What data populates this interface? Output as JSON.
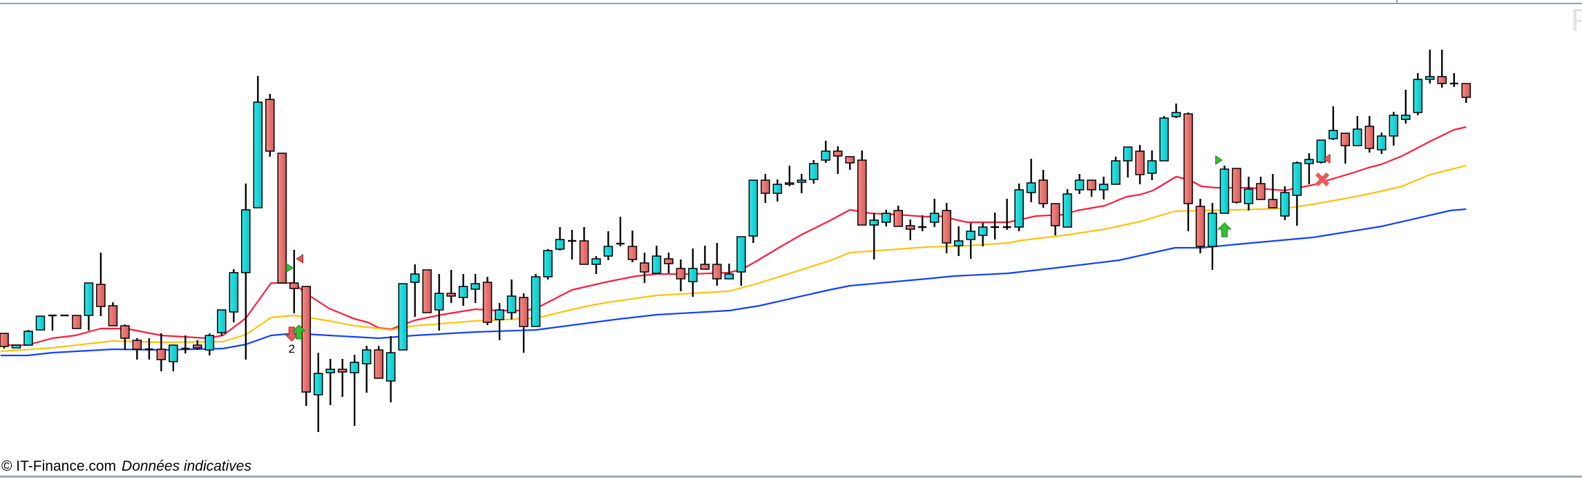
{
  "footer": {
    "copyright": "© IT-Finance.com",
    "disclaimer": "Données indicatives"
  },
  "watermark_fragment": "F",
  "colors": {
    "bull": "#12d6d6",
    "bear": "#e86e6e",
    "outline": "#000000",
    "ma_fast": "#ff1a3c",
    "ma_mid": "#ffc20e",
    "ma_slow": "#1040ff",
    "signal_buy": "#2eb82e",
    "signal_sell": "#e84c4c",
    "border": "#8fa0aa"
  },
  "chart_data": {
    "type": "candlestick",
    "title": "",
    "xlabel": "",
    "ylabel": "",
    "grid": false,
    "note": "No price or time axis shown; values in relative price units, x in bar index",
    "xlim": [
      1,
      122
    ],
    "ylim": [
      5,
      65
    ],
    "candles_ohlc": [
      [
        21.7,
        21.7,
        19.5,
        19.8
      ],
      [
        19.6,
        20.0,
        19.6,
        20.0
      ],
      [
        20.0,
        22.2,
        20.0,
        22.0
      ],
      [
        22.2,
        24.2,
        22.2,
        24.2
      ],
      [
        24.3,
        24.3,
        22.1,
        24.3
      ],
      [
        24.3,
        24.3,
        24.3,
        24.3
      ],
      [
        24.3,
        24.3,
        22.4,
        22.4
      ],
      [
        24.3,
        29.0,
        22.1,
        29.0
      ],
      [
        28.8,
        33.4,
        24.2,
        25.6
      ],
      [
        25.7,
        26.2,
        22.8,
        22.8
      ],
      [
        22.8,
        23.0,
        19.3,
        21.0
      ],
      [
        20.7,
        21.0,
        17.9,
        19.4
      ],
      [
        19.4,
        21.0,
        17.9,
        19.4
      ],
      [
        19.4,
        21.7,
        16.2,
        17.9
      ],
      [
        17.6,
        20.0,
        16.2,
        20.0
      ],
      [
        19.5,
        21.4,
        18.8,
        19.5
      ],
      [
        20.0,
        20.7,
        19.3,
        19.6
      ],
      [
        19.3,
        21.7,
        18.5,
        21.4
      ],
      [
        21.8,
        25.1,
        21.4,
        25.1
      ],
      [
        24.8,
        31.0,
        23.3,
        30.5
      ],
      [
        30.5,
        43.4,
        17.9,
        39.6
      ],
      [
        39.9,
        59.0,
        39.9,
        55.2
      ],
      [
        55.6,
        56.4,
        47.3,
        48.1
      ],
      [
        47.8,
        47.8,
        29.0,
        29.0
      ],
      [
        29.0,
        33.8,
        24.6,
        28.2
      ],
      [
        28.5,
        28.5,
        11.2,
        13.2
      ],
      [
        12.8,
        18.9,
        7.4,
        15.9
      ],
      [
        16.0,
        18.0,
        11.3,
        16.5
      ],
      [
        16.5,
        18.0,
        12.5,
        16.1
      ],
      [
        16.0,
        18.6,
        8.3,
        17.5
      ],
      [
        17.3,
        19.9,
        13.1,
        19.3
      ],
      [
        19.3,
        19.9,
        15.2,
        15.2
      ],
      [
        14.8,
        21.3,
        11.7,
        18.9
      ],
      [
        19.3,
        28.9,
        19.3,
        28.9
      ],
      [
        29.1,
        31.7,
        24.1,
        30.3
      ],
      [
        30.9,
        30.9,
        24.7,
        24.7
      ],
      [
        25.1,
        30.3,
        22.1,
        27.5
      ],
      [
        27.5,
        30.9,
        26.1,
        27.1
      ],
      [
        26.9,
        30.3,
        25.7,
        28.5
      ],
      [
        28.1,
        30.3,
        26.1,
        28.9
      ],
      [
        29.1,
        29.9,
        22.9,
        23.3
      ],
      [
        23.7,
        26.1,
        20.7,
        25.1
      ],
      [
        24.7,
        29.5,
        23.7,
        27.1
      ],
      [
        26.9,
        27.5,
        18.9,
        22.7
      ],
      [
        22.7,
        30.3,
        22.7,
        29.9
      ],
      [
        29.9,
        33.9,
        29.5,
        33.7
      ],
      [
        33.9,
        37.1,
        33.7,
        35.3
      ],
      [
        35.1,
        36.7,
        32.4,
        35.1
      ],
      [
        35.1,
        37.1,
        31.7,
        31.7
      ],
      [
        31.7,
        32.9,
        30.3,
        32.5
      ],
      [
        32.9,
        36.5,
        32.3,
        34.3
      ],
      [
        34.7,
        38.6,
        34.3,
        34.7
      ],
      [
        34.3,
        36.6,
        32.0,
        32.4
      ],
      [
        31.9,
        33.4,
        29.0,
        30.6
      ],
      [
        30.4,
        34.4,
        30.4,
        32.9
      ],
      [
        32.5,
        33.4,
        30.4,
        31.8
      ],
      [
        31.1,
        32.4,
        27.8,
        29.6
      ],
      [
        29.2,
        34.0,
        27.0,
        31.1
      ],
      [
        31.7,
        34.4,
        31.0,
        31.0
      ],
      [
        31.7,
        34.8,
        28.6,
        29.6
      ],
      [
        29.6,
        31.8,
        29.6,
        30.3
      ],
      [
        30.6,
        35.7,
        28.6,
        35.7
      ],
      [
        35.8,
        43.9,
        34.8,
        43.9
      ],
      [
        43.9,
        44.8,
        40.6,
        42.0
      ],
      [
        42.0,
        44.0,
        40.8,
        43.3
      ],
      [
        43.5,
        46.0,
        43.0,
        43.3
      ],
      [
        43.6,
        44.8,
        42.0,
        43.9
      ],
      [
        44.0,
        46.8,
        43.4,
        46.3
      ],
      [
        46.8,
        49.6,
        46.4,
        48.1
      ],
      [
        48.1,
        48.8,
        44.8,
        47.4
      ],
      [
        47.3,
        47.3,
        45.4,
        46.4
      ],
      [
        46.8,
        48.2,
        37.4,
        37.4
      ],
      [
        37.4,
        39.1,
        32.4,
        38.1
      ],
      [
        37.8,
        39.6,
        37.2,
        39.1
      ],
      [
        39.5,
        40.2,
        37.2,
        37.2
      ],
      [
        37.3,
        38.2,
        35.2,
        36.8
      ],
      [
        37.1,
        38.8,
        36.5,
        37.1
      ],
      [
        37.8,
        41.2,
        37.1,
        39.1
      ],
      [
        39.5,
        40.6,
        33.3,
        34.8
      ],
      [
        34.4,
        37.2,
        32.9,
        35.1
      ],
      [
        35.3,
        37.7,
        32.5,
        36.5
      ],
      [
        35.9,
        37.7,
        34.3,
        37.1
      ],
      [
        37.1,
        39.2,
        35.3,
        37.1
      ],
      [
        37.1,
        41.2,
        36.7,
        37.1
      ],
      [
        37.1,
        43.4,
        36.5,
        42.5
      ],
      [
        42.1,
        47.0,
        40.7,
        43.5
      ],
      [
        43.9,
        45.4,
        39.9,
        40.5
      ],
      [
        40.5,
        40.5,
        35.9,
        37.3
      ],
      [
        37.1,
        42.6,
        37.1,
        41.9
      ],
      [
        42.5,
        44.8,
        41.9,
        43.9
      ],
      [
        43.9,
        43.9,
        41.5,
        42.5
      ],
      [
        42.5,
        44.4,
        41.1,
        43.3
      ],
      [
        43.3,
        47.3,
        43.3,
        46.7
      ],
      [
        46.7,
        48.7,
        44.3,
        48.7
      ],
      [
        48.1,
        49.0,
        43.3,
        44.7
      ],
      [
        44.9,
        48.2,
        43.9,
        46.7
      ],
      [
        46.7,
        53.2,
        46.7,
        52.9
      ],
      [
        53.1,
        55.0,
        52.9,
        53.7
      ],
      [
        53.5,
        53.7,
        36.5,
        40.5
      ],
      [
        40.1,
        41.2,
        33.3,
        34.3
      ],
      [
        34.3,
        40.6,
        30.9,
        39.1
      ],
      [
        39.1,
        46.0,
        39.1,
        45.5
      ],
      [
        45.6,
        45.6,
        40.5,
        40.7
      ],
      [
        40.5,
        44.4,
        39.5,
        42.6
      ],
      [
        43.4,
        44.4,
        41.1,
        41.1
      ],
      [
        41.1,
        44.8,
        39.9,
        39.9
      ],
      [
        38.7,
        43.0,
        38.1,
        42.1
      ],
      [
        41.7,
        46.6,
        37.3,
        46.4
      ],
      [
        46.3,
        47.8,
        43.3,
        46.9
      ],
      [
        46.5,
        49.7,
        46.3,
        49.7
      ],
      [
        49.9,
        54.6,
        49.7,
        51.1
      ],
      [
        50.7,
        50.7,
        46.3,
        48.9
      ],
      [
        48.9,
        53.2,
        48.9,
        51.3
      ],
      [
        51.7,
        53.2,
        47.9,
        48.5
      ],
      [
        48.3,
        50.8,
        47.7,
        50.3
      ],
      [
        50.3,
        53.8,
        48.9,
        53.3
      ],
      [
        52.7,
        57.0,
        52.1,
        53.3
      ],
      [
        53.7,
        59.4,
        53.3,
        58.5
      ],
      [
        58.5,
        62.8,
        57.9,
        58.9
      ],
      [
        58.9,
        62.8,
        57.3,
        57.9
      ],
      [
        57.9,
        59.4,
        57.4,
        57.9
      ],
      [
        57.9,
        57.9,
        55.1,
        55.9
      ]
    ],
    "series": [
      {
        "name": "MA fast",
        "color_key": "ma_fast",
        "points": [
          [
            0.7,
            20.0
          ],
          [
            2.9,
            20.0
          ],
          [
            5.0,
            21.0
          ],
          [
            6.9,
            21.4
          ],
          [
            9.0,
            22.4
          ],
          [
            11.1,
            22.4
          ],
          [
            14.0,
            21.4
          ],
          [
            17.8,
            21.0
          ],
          [
            19.1,
            21.4
          ],
          [
            21.0,
            23.9
          ],
          [
            23.1,
            29.0
          ],
          [
            25.0,
            29.0
          ],
          [
            25.8,
            27.7
          ],
          [
            27.9,
            25.3
          ],
          [
            30.0,
            23.8
          ],
          [
            31.1,
            23.3
          ],
          [
            32.0,
            22.5
          ],
          [
            33.0,
            22.3
          ],
          [
            35.0,
            23.6
          ],
          [
            37.2,
            24.4
          ],
          [
            40.0,
            25.2
          ],
          [
            41.8,
            25.0
          ],
          [
            44.1,
            25.0
          ],
          [
            45.0,
            25.3
          ],
          [
            48.0,
            28.0
          ],
          [
            51.0,
            29.2
          ],
          [
            53.3,
            30.0
          ],
          [
            55.0,
            30.3
          ],
          [
            57.9,
            30.3
          ],
          [
            61.0,
            30.5
          ],
          [
            62.1,
            31.0
          ],
          [
            63.4,
            32.3
          ],
          [
            65.3,
            34.3
          ],
          [
            67.0,
            36.0
          ],
          [
            69.3,
            38.0
          ],
          [
            71.0,
            39.6
          ],
          [
            72.7,
            39.1
          ],
          [
            75.0,
            38.9
          ],
          [
            77.3,
            38.6
          ],
          [
            78.4,
            38.7
          ],
          [
            80.7,
            37.8
          ],
          [
            83.0,
            37.8
          ],
          [
            84.1,
            37.8
          ],
          [
            86.4,
            38.7
          ],
          [
            88.7,
            38.9
          ],
          [
            89.8,
            39.5
          ],
          [
            92.1,
            40.2
          ],
          [
            93.9,
            41.5
          ],
          [
            95.0,
            41.8
          ],
          [
            96.1,
            42.4
          ],
          [
            98.0,
            44.4
          ],
          [
            99.0,
            44.0
          ],
          [
            100.1,
            43.0
          ],
          [
            101.3,
            42.8
          ],
          [
            104.0,
            42.8
          ],
          [
            107.0,
            42.4
          ],
          [
            108.1,
            42.8
          ],
          [
            109.3,
            43.2
          ],
          [
            110.4,
            43.8
          ],
          [
            112.7,
            45.0
          ],
          [
            113.9,
            45.7
          ],
          [
            115.0,
            46.2
          ],
          [
            116.7,
            47.4
          ],
          [
            119.0,
            49.5
          ],
          [
            121.0,
            51.2
          ],
          [
            122.0,
            51.6
          ]
        ]
      },
      {
        "name": "MA medium",
        "color_key": "ma_mid",
        "points": [
          [
            0.7,
            19.1
          ],
          [
            5.0,
            19.6
          ],
          [
            10.0,
            20.6
          ],
          [
            14.0,
            20.4
          ],
          [
            19.1,
            20.5
          ],
          [
            21.0,
            21.5
          ],
          [
            23.1,
            24.0
          ],
          [
            25.0,
            24.3
          ],
          [
            25.8,
            24.1
          ],
          [
            27.9,
            23.5
          ],
          [
            30.0,
            22.8
          ],
          [
            32.0,
            22.4
          ],
          [
            33.0,
            22.2
          ],
          [
            35.0,
            22.8
          ],
          [
            40.0,
            23.5
          ],
          [
            45.0,
            23.9
          ],
          [
            49.1,
            25.6
          ],
          [
            51.0,
            26.2
          ],
          [
            55.0,
            27.2
          ],
          [
            61.0,
            27.8
          ],
          [
            63.5,
            29.0
          ],
          [
            69.3,
            32.2
          ],
          [
            71.0,
            33.4
          ],
          [
            77.3,
            34.2
          ],
          [
            80.7,
            34.4
          ],
          [
            84.1,
            34.8
          ],
          [
            85.3,
            35.2
          ],
          [
            88.7,
            35.9
          ],
          [
            92.1,
            36.8
          ],
          [
            95.0,
            37.9
          ],
          [
            97.9,
            39.4
          ],
          [
            100.1,
            39.5
          ],
          [
            103.0,
            39.6
          ],
          [
            107.0,
            39.8
          ],
          [
            109.3,
            40.4
          ],
          [
            112.2,
            41.3
          ],
          [
            115.0,
            42.3
          ],
          [
            116.7,
            43.0
          ],
          [
            119.0,
            44.7
          ],
          [
            122.0,
            46.0
          ]
        ]
      },
      {
        "name": "MA slow",
        "color_key": "ma_slow",
        "points": [
          [
            0.7,
            18.5
          ],
          [
            2.9,
            18.5
          ],
          [
            5.0,
            18.9
          ],
          [
            10.0,
            19.4
          ],
          [
            14.0,
            19.3
          ],
          [
            19.1,
            19.5
          ],
          [
            21.0,
            20.1
          ],
          [
            23.1,
            21.4
          ],
          [
            25.0,
            21.7
          ],
          [
            27.9,
            21.4
          ],
          [
            32.0,
            21.0
          ],
          [
            35.0,
            21.4
          ],
          [
            40.0,
            21.9
          ],
          [
            45.0,
            22.2
          ],
          [
            52.0,
            23.8
          ],
          [
            55.0,
            24.4
          ],
          [
            61.0,
            25.0
          ],
          [
            63.5,
            25.7
          ],
          [
            69.3,
            28.0
          ],
          [
            71.0,
            28.6
          ],
          [
            77.3,
            29.6
          ],
          [
            79.6,
            30.0
          ],
          [
            84.1,
            30.4
          ],
          [
            88.1,
            31.2
          ],
          [
            93.3,
            32.3
          ],
          [
            97.9,
            34.1
          ],
          [
            100.1,
            34.1
          ],
          [
            103.0,
            34.6
          ],
          [
            109.3,
            35.6
          ],
          [
            115.0,
            37.2
          ],
          [
            120.7,
            39.5
          ],
          [
            122.0,
            39.7
          ]
        ]
      }
    ],
    "signals": [
      {
        "type": "triangle-right",
        "side": "buy",
        "bar": 24.6,
        "price": 31.2
      },
      {
        "type": "triangle-left",
        "side": "sell",
        "bar": 25.5,
        "price": 32.5
      },
      {
        "type": "arrow-down",
        "side": "sell",
        "bar": 24.8,
        "price": 21.6,
        "label": "2"
      },
      {
        "type": "arrow-up",
        "side": "buy",
        "bar": 25.4,
        "price": 21.9
      },
      {
        "type": "triangle-right",
        "side": "buy",
        "bar": 101.5,
        "price": 46.8
      },
      {
        "type": "arrow-up",
        "side": "buy",
        "bar": 102.0,
        "price": 36.7
      },
      {
        "type": "triangle-left",
        "side": "sell",
        "bar": 110.5,
        "price": 47.0
      },
      {
        "type": "cross",
        "side": "sell",
        "bar": 110.1,
        "price": 44.0
      }
    ]
  }
}
